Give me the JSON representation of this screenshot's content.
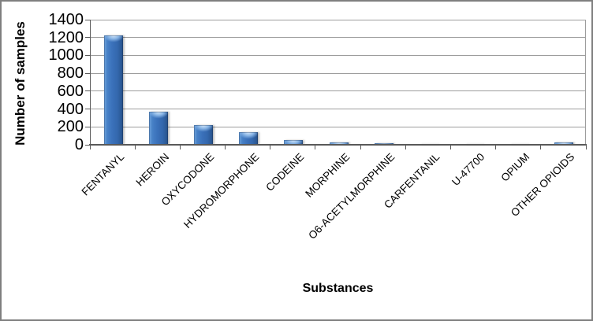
{
  "figure": {
    "background": "#FFFFFF",
    "border_color": "#7F7F7F"
  },
  "chart_data": {
    "type": "bar",
    "title": "",
    "xlabel": "Substances",
    "ylabel": "Number of samples",
    "categories": [
      "FENTANYL",
      "HEROIN",
      "OXYCODONE",
      "HYDROMORPHONE",
      "CODEINE",
      "MORPHINE",
      "O6-ACETYLMORPHINE",
      "CARFENTANIL",
      "U-47700",
      "OPIUM",
      "OTHER OPIOIDS"
    ],
    "values": [
      1220,
      370,
      220,
      140,
      50,
      25,
      16,
      10,
      9,
      6,
      28
    ],
    "ylim": [
      0,
      1400
    ],
    "ytick_interval": 200,
    "ytick_labels": [
      "0",
      "200",
      "400",
      "600",
      "800",
      "1000",
      "1200",
      "1400"
    ],
    "grid": "horizontal-only",
    "legend": "none",
    "bar_color": "#3A6FB8",
    "bar_highlight": "#8AB6E6",
    "gridline_color": "#9D9D9D",
    "axis_color": "#595959",
    "text_color": "#000000"
  }
}
